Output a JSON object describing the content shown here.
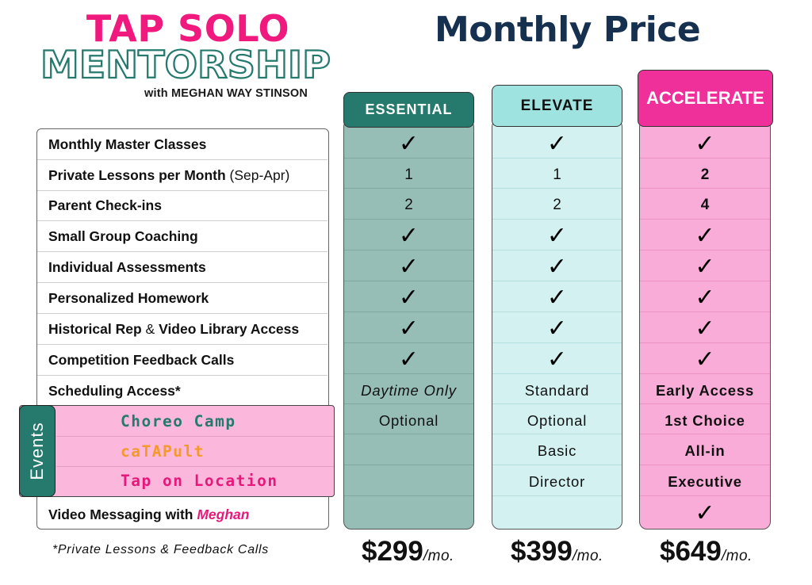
{
  "logo": {
    "line1": "TAP SOLO",
    "line2": "MENTORSHIP",
    "line3": "with MEGHAN WAY STINSON"
  },
  "title": "Monthly Price",
  "features": [
    {
      "label": "Monthly Master Classes",
      "suffix": ""
    },
    {
      "label": "Private Lessons per Month",
      "suffix": " (Sep-Apr)"
    },
    {
      "label": "Parent Check-ins",
      "suffix": ""
    },
    {
      "label": "Small Group Coaching",
      "suffix": ""
    },
    {
      "label": "Individual Assessments",
      "suffix": ""
    },
    {
      "label": "Personalized Homework",
      "suffix": ""
    },
    {
      "label": "Historical Rep",
      "amp": " & ",
      "label2": "Video Library Access"
    },
    {
      "label": "Competition Feedback Calls",
      "suffix": ""
    },
    {
      "label": "Scheduling Access*",
      "suffix": ""
    }
  ],
  "video_messaging": {
    "label": "Video Messaging with ",
    "name": "Meghan"
  },
  "events": {
    "tab_label": "Events",
    "items": [
      {
        "label": "Choreo Camp",
        "color": "#257a6d"
      },
      {
        "label": "caTAPult",
        "color": "#f39a2b"
      },
      {
        "label": "Tap on Location",
        "color": "#e6197b"
      }
    ]
  },
  "tiers": [
    {
      "name": "ESSENTIAL",
      "head_bg": "#257a6d",
      "head_color": "#ffffff",
      "col_bg": "#96bdb6",
      "line": "#7fa8a1",
      "values": [
        "check",
        "1",
        "2",
        "check",
        "check",
        "check",
        "check",
        "check",
        "Daytime Only",
        "Optional",
        "",
        "",
        ""
      ],
      "price": "$299",
      "per": "/mo."
    },
    {
      "name": "ELEVATE",
      "head_bg": "#9ee3df",
      "head_color": "#111111",
      "col_bg": "#d3f1f1",
      "line": "#b5dede",
      "values": [
        "check",
        "1",
        "2",
        "check",
        "check",
        "check",
        "check",
        "check",
        "Standard",
        "Optional",
        "Basic",
        "Director",
        ""
      ],
      "price": "$399",
      "per": "/mo."
    },
    {
      "name": "ACCELERATE",
      "head_bg": "#f0309a",
      "head_color": "#ffffff",
      "col_bg": "#f9acd7",
      "line": "#eb94c4",
      "values": [
        "check",
        "2",
        "4",
        "check",
        "check",
        "check",
        "check",
        "check",
        "Early Access",
        "1st Choice",
        "All-in",
        "Executive",
        "check"
      ],
      "price": "$649",
      "per": "/mo."
    }
  ],
  "check_glyph": "✓",
  "footnote": "*Private Lessons & Feedback Calls"
}
